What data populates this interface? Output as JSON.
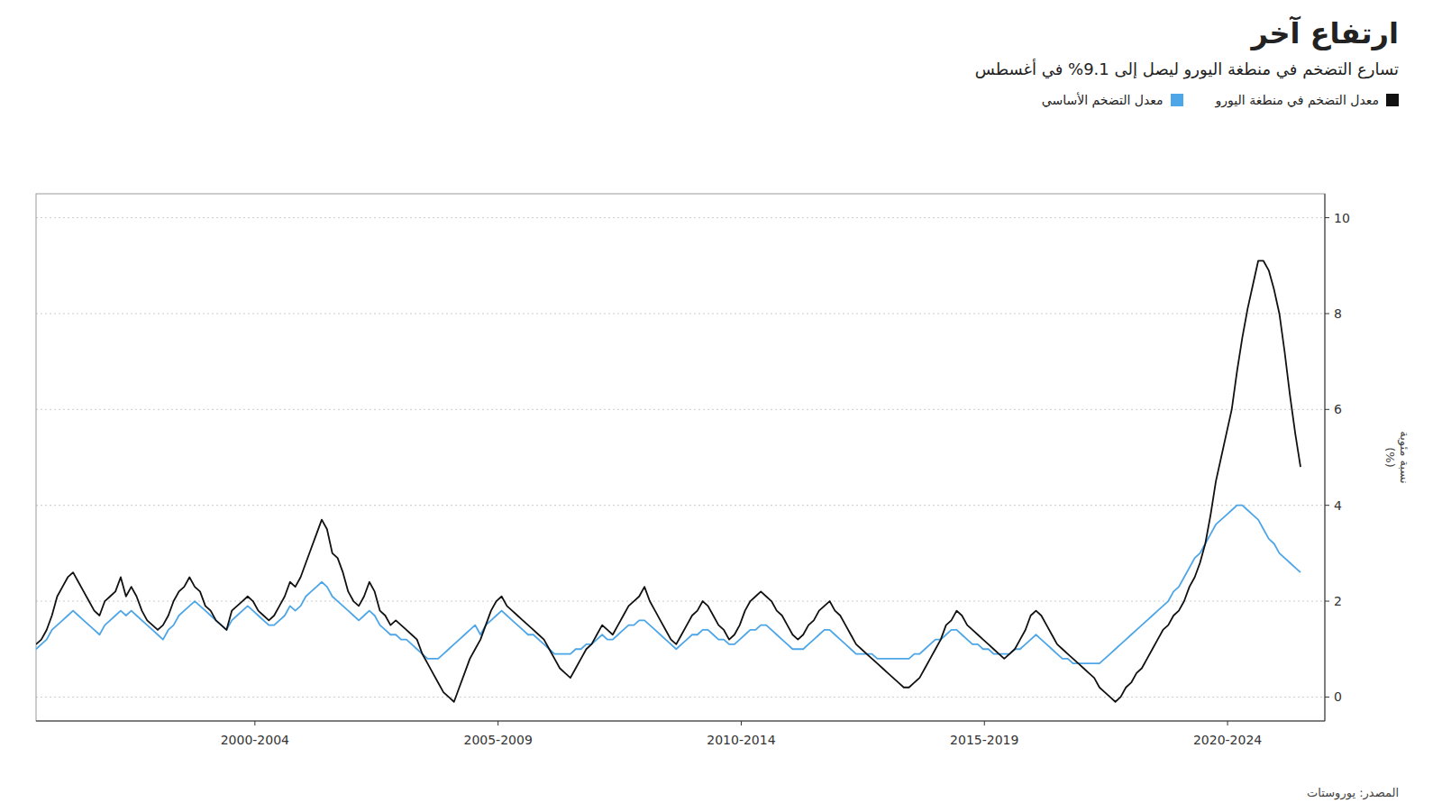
{
  "chart_data": {
    "type": "line",
    "title": "ارتفاع آخر",
    "subtitle": "تسارع التضخم في منطغة اليورو ليصل إلى 9.1% في أغسطس",
    "y_label": "نسبة مئوية\n(%)",
    "source": "المصدر: يوروستات",
    "legend": "top",
    "grid": true,
    "xlim": [
      1997.5,
      2024.0
    ],
    "xticks": [
      {
        "value": 2002,
        "label": "2000-2004"
      },
      {
        "value": 2007,
        "label": "2005-2009"
      },
      {
        "value": 2012,
        "label": "2010-2014"
      },
      {
        "value": 2017,
        "label": "2015-2019"
      },
      {
        "value": 2022,
        "label": "2020-2024"
      }
    ],
    "ylim": [
      -0.5,
      10.5
    ],
    "yticks": [
      0,
      2,
      4,
      6,
      8,
      10
    ],
    "x": [
      1997.5,
      1997.6088,
      1997.7176,
      1997.8264,
      1997.9351,
      1998.0439,
      1998.1527,
      1998.2615,
      1998.3703,
      1998.4791,
      1998.5879,
      1998.6967,
      1998.8054,
      1998.9142,
      1999.023,
      1999.1318,
      1999.2406,
      1999.3494,
      1999.4582,
      1999.5669,
      1999.6757,
      1999.7845,
      1999.8933,
      2000.0021,
      2000.1109,
      2000.2197,
      2000.3285,
      2000.4372,
      2000.546,
      2000.6548,
      2000.7636,
      2000.8724,
      2000.9812,
      2001.09,
      2001.1987,
      2001.3075,
      2001.4163,
      2001.5251,
      2001.6339,
      2001.7427,
      2001.8515,
      2001.9603,
      2002.069,
      2002.1778,
      2002.2866,
      2002.3954,
      2002.5042,
      2002.613,
      2002.7218,
      2002.8305,
      2002.9393,
      2003.0481,
      2003.1569,
      2003.2657,
      2003.3745,
      2003.4833,
      2003.5921,
      2003.7008,
      2003.8096,
      2003.9184,
      2004.0272,
      2004.136,
      2004.2448,
      2004.3536,
      2004.4623,
      2004.5711,
      2004.6799,
      2004.7887,
      2004.8975,
      2005.0063,
      2005.1151,
      2005.2238,
      2005.3326,
      2005.4414,
      2005.5502,
      2005.659,
      2005.7678,
      2005.8766,
      2005.9854,
      2006.0941,
      2006.2029,
      2006.3117,
      2006.4205,
      2006.5293,
      2006.6381,
      2006.7469,
      2006.8556,
      2006.9644,
      2007.0732,
      2007.182,
      2007.2908,
      2007.3996,
      2007.5084,
      2007.6172,
      2007.7259,
      2007.8347,
      2007.9435,
      2008.0523,
      2008.1611,
      2008.2699,
      2008.3787,
      2008.4874,
      2008.5962,
      2008.705,
      2008.8138,
      2008.9226,
      2009.0314,
      2009.1402,
      2009.249,
      2009.3577,
      2009.4665,
      2009.5753,
      2009.6841,
      2009.7929,
      2009.9017,
      2010.0105,
      2010.1192,
      2010.228,
      2010.3368,
      2010.4456,
      2010.5544,
      2010.6632,
      2010.772,
      2010.8808,
      2010.9895,
      2011.0983,
      2011.2071,
      2011.3159,
      2011.4247,
      2011.5335,
      2011.6423,
      2011.751,
      2011.8598,
      2011.9686,
      2012.0774,
      2012.1862,
      2012.295,
      2012.4038,
      2012.5126,
      2012.6213,
      2012.7301,
      2012.8389,
      2012.9477,
      2013.0565,
      2013.1653,
      2013.2741,
      2013.3828,
      2013.4916,
      2013.6004,
      2013.7092,
      2013.818,
      2013.9268,
      2014.0356,
      2014.1444,
      2014.2531,
      2014.3619,
      2014.4707,
      2014.5795,
      2014.6883,
      2014.7971,
      2014.9059,
      2015.0146,
      2015.1234,
      2015.2322,
      2015.341,
      2015.4498,
      2015.5586,
      2015.6674,
      2015.7762,
      2015.8849,
      2015.9937,
      2016.1025,
      2016.2113,
      2016.3201,
      2016.4289,
      2016.5377,
      2016.6464,
      2016.7552,
      2016.864,
      2016.9728,
      2017.0816,
      2017.1904,
      2017.2992,
      2017.4079,
      2017.5167,
      2017.6255,
      2017.7343,
      2017.8431,
      2017.9519,
      2018.0607,
      2018.1695,
      2018.2782,
      2018.387,
      2018.4958,
      2018.6046,
      2018.7134,
      2018.8222,
      2018.931,
      2019.0397,
      2019.1485,
      2019.2573,
      2019.3661,
      2019.4749,
      2019.5837,
      2019.6925,
      2019.8013,
      2019.91,
      2020.0188,
      2020.1276,
      2020.2364,
      2020.3452,
      2020.454,
      2020.5628,
      2020.6715,
      2020.7803,
      2020.8891,
      2020.9979,
      2021.1067,
      2021.2155,
      2021.3243,
      2021.4331,
      2021.5418,
      2021.6506,
      2021.7594,
      2021.8682,
      2021.977,
      2022.0858,
      2022.1946,
      2022.3033,
      2022.4121,
      2022.5209,
      2022.6297,
      2022.7385,
      2022.8473,
      2022.9561,
      2023.0649,
      2023.1736,
      2023.2824,
      2023.3912,
      2023.5
    ],
    "series": [
      {
        "name": "معدل التضخم في منطغة اليورو",
        "color": "#111111",
        "values": [
          1.1,
          1.2,
          1.4,
          1.7,
          2.1,
          2.3,
          2.5,
          2.6,
          2.4,
          2.2,
          2.0,
          1.8,
          1.7,
          2.0,
          2.1,
          2.2,
          2.5,
          2.1,
          2.3,
          2.1,
          1.8,
          1.6,
          1.5,
          1.4,
          1.5,
          1.7,
          2.0,
          2.2,
          2.3,
          2.5,
          2.3,
          2.2,
          1.9,
          1.8,
          1.6,
          1.5,
          1.4,
          1.8,
          1.9,
          2.0,
          2.1,
          2.0,
          1.8,
          1.7,
          1.6,
          1.7,
          1.9,
          2.1,
          2.4,
          2.3,
          2.5,
          2.8,
          3.1,
          3.4,
          3.7,
          3.5,
          3.0,
          2.9,
          2.6,
          2.2,
          2.0,
          1.9,
          2.1,
          2.4,
          2.2,
          1.8,
          1.7,
          1.5,
          1.6,
          1.5,
          1.4,
          1.3,
          1.2,
          0.9,
          0.7,
          0.5,
          0.3,
          0.1,
          0.0,
          -0.1,
          0.2,
          0.5,
          0.8,
          1.0,
          1.2,
          1.5,
          1.8,
          2.0,
          2.1,
          1.9,
          1.8,
          1.7,
          1.6,
          1.5,
          1.4,
          1.3,
          1.2,
          1.0,
          0.8,
          0.6,
          0.5,
          0.4,
          0.6,
          0.8,
          1.0,
          1.1,
          1.3,
          1.5,
          1.4,
          1.3,
          1.5,
          1.7,
          1.9,
          2.0,
          2.1,
          2.3,
          2.0,
          1.8,
          1.6,
          1.4,
          1.2,
          1.1,
          1.3,
          1.5,
          1.7,
          1.8,
          2.0,
          1.9,
          1.7,
          1.5,
          1.4,
          1.2,
          1.3,
          1.5,
          1.8,
          2.0,
          2.1,
          2.2,
          2.1,
          2.0,
          1.8,
          1.7,
          1.5,
          1.3,
          1.2,
          1.3,
          1.5,
          1.6,
          1.8,
          1.9,
          2.0,
          1.8,
          1.7,
          1.5,
          1.3,
          1.1,
          1.0,
          0.9,
          0.8,
          0.7,
          0.6,
          0.5,
          0.4,
          0.3,
          0.2,
          0.2,
          0.3,
          0.4,
          0.6,
          0.8,
          1.0,
          1.2,
          1.5,
          1.6,
          1.8,
          1.7,
          1.5,
          1.4,
          1.3,
          1.2,
          1.1,
          1.0,
          0.9,
          0.8,
          0.9,
          1.0,
          1.2,
          1.4,
          1.7,
          1.8,
          1.7,
          1.5,
          1.3,
          1.1,
          1.0,
          0.9,
          0.8,
          0.7,
          0.6,
          0.5,
          0.4,
          0.2,
          0.1,
          0.0,
          -0.1,
          0.0,
          0.2,
          0.3,
          0.5,
          0.6,
          0.8,
          1.0,
          1.2,
          1.4,
          1.5,
          1.7,
          1.8,
          2.0,
          2.3,
          2.5,
          2.8,
          3.2,
          3.8,
          4.5,
          5.0,
          5.5,
          6.0,
          6.8,
          7.5,
          8.1,
          8.6,
          9.1,
          9.1,
          8.9,
          8.5,
          8.0,
          7.2,
          6.3,
          5.5,
          4.8
        ]
      },
      {
        "name": "معدل التضخم الأساسي",
        "color": "#4da6e8",
        "values": [
          1.0,
          1.1,
          1.2,
          1.4,
          1.5,
          1.6,
          1.7,
          1.8,
          1.7,
          1.6,
          1.5,
          1.4,
          1.3,
          1.5,
          1.6,
          1.7,
          1.8,
          1.7,
          1.8,
          1.7,
          1.6,
          1.5,
          1.4,
          1.3,
          1.2,
          1.4,
          1.5,
          1.7,
          1.8,
          1.9,
          2.0,
          1.9,
          1.8,
          1.7,
          1.6,
          1.5,
          1.4,
          1.6,
          1.7,
          1.8,
          1.9,
          1.8,
          1.7,
          1.6,
          1.5,
          1.5,
          1.6,
          1.7,
          1.9,
          1.8,
          1.9,
          2.1,
          2.2,
          2.3,
          2.4,
          2.3,
          2.1,
          2.0,
          1.9,
          1.8,
          1.7,
          1.6,
          1.7,
          1.8,
          1.7,
          1.5,
          1.4,
          1.3,
          1.3,
          1.2,
          1.2,
          1.1,
          1.0,
          0.9,
          0.8,
          0.8,
          0.8,
          0.9,
          1.0,
          1.1,
          1.2,
          1.3,
          1.4,
          1.5,
          1.3,
          1.5,
          1.6,
          1.7,
          1.8,
          1.7,
          1.6,
          1.5,
          1.4,
          1.3,
          1.3,
          1.2,
          1.1,
          1.0,
          0.9,
          0.9,
          0.9,
          0.9,
          1.0,
          1.0,
          1.1,
          1.1,
          1.2,
          1.3,
          1.2,
          1.2,
          1.3,
          1.4,
          1.5,
          1.5,
          1.6,
          1.6,
          1.5,
          1.4,
          1.3,
          1.2,
          1.1,
          1.0,
          1.1,
          1.2,
          1.3,
          1.3,
          1.4,
          1.4,
          1.3,
          1.2,
          1.2,
          1.1,
          1.1,
          1.2,
          1.3,
          1.4,
          1.4,
          1.5,
          1.5,
          1.4,
          1.3,
          1.2,
          1.1,
          1.0,
          1.0,
          1.0,
          1.1,
          1.2,
          1.3,
          1.4,
          1.4,
          1.3,
          1.2,
          1.1,
          1.0,
          0.9,
          0.9,
          0.9,
          0.9,
          0.8,
          0.8,
          0.8,
          0.8,
          0.8,
          0.8,
          0.8,
          0.9,
          0.9,
          1.0,
          1.1,
          1.2,
          1.2,
          1.3,
          1.4,
          1.4,
          1.3,
          1.2,
          1.1,
          1.1,
          1.0,
          1.0,
          0.9,
          0.9,
          0.9,
          0.9,
          1.0,
          1.0,
          1.1,
          1.2,
          1.3,
          1.2,
          1.1,
          1.0,
          0.9,
          0.8,
          0.8,
          0.7,
          0.7,
          0.7,
          0.7,
          0.7,
          0.7,
          0.8,
          0.9,
          1.0,
          1.1,
          1.2,
          1.3,
          1.4,
          1.5,
          1.6,
          1.7,
          1.8,
          1.9,
          2.0,
          2.2,
          2.3,
          2.5,
          2.7,
          2.9,
          3.0,
          3.2,
          3.4,
          3.6,
          3.7,
          3.8,
          3.9,
          4.0,
          4.0,
          3.9,
          3.8,
          3.7,
          3.5,
          3.3,
          3.2,
          3.0,
          2.9,
          2.8,
          2.7,
          2.6
        ]
      }
    ]
  }
}
